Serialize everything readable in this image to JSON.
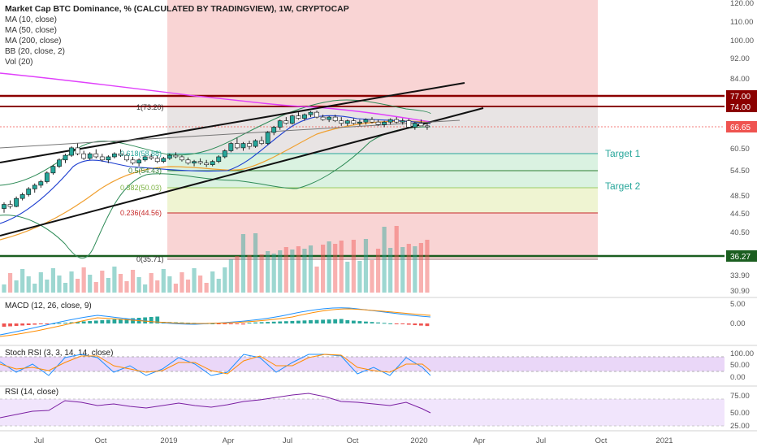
{
  "header": {
    "title": "Market Cap BTC Dominance, % (CALCULATED BY TRADINGVIEW), 1W, CRYPTOCAP",
    "indicators": [
      "MA (10, close)",
      "MA (50, close)",
      "MA (200, close)",
      "BB (20, close, 2)",
      "Vol (20)"
    ]
  },
  "chart_data": {
    "type": "candlestick",
    "title": "Market Cap BTC Dominance, % (CALCULATED BY TRADINGVIEW), 1W, CRYPTOCAP",
    "x_ticks": [
      "Jul",
      "Oct",
      "2019",
      "Apr",
      "Jul",
      "Oct",
      "2020",
      "Apr",
      "Jul",
      "Oct",
      "2021"
    ],
    "y_ticks": [
      "120.00",
      "110.00",
      "100.00",
      "92.00",
      "84.00",
      "77.00",
      "74.00",
      "66.65",
      "60.50",
      "54.50",
      "48.50",
      "44.50",
      "40.50",
      "36.27",
      "33.90",
      "30.90"
    ],
    "ylim": [
      30.9,
      120
    ],
    "y_scale": "log",
    "last_price": "66.65",
    "resistance_levels": [
      "77.00",
      "74.00"
    ],
    "support_level": "36.27",
    "fib_levels": [
      "1(73.20)",
      "0.618(58.88)",
      "0.5(54.43)",
      "0.382(50.03)",
      "0.236(44.56)",
      "0(35.71)"
    ],
    "targets": [
      "Target 1",
      "Target 2"
    ],
    "candles": [
      [
        41.5,
        43.0,
        40.5,
        42.5
      ],
      [
        42.5,
        43.5,
        41.5,
        42.0
      ],
      [
        42.0,
        44.5,
        41.8,
        44.0
      ],
      [
        44.0,
        45.5,
        43.5,
        45.0
      ],
      [
        45.0,
        47.0,
        44.5,
        46.5
      ],
      [
        46.5,
        48.0,
        45.5,
        47.5
      ],
      [
        47.5,
        49.0,
        46.8,
        48.5
      ],
      [
        48.5,
        51.5,
        48.0,
        51.0
      ],
      [
        51.0,
        53.5,
        50.5,
        53.0
      ],
      [
        53.0,
        55.5,
        52.5,
        55.0
      ],
      [
        55.0,
        57.0,
        54.0,
        56.5
      ],
      [
        56.5,
        59.5,
        56.0,
        59.0
      ],
      [
        59.0,
        60.5,
        56.5,
        57.0
      ],
      [
        57.0,
        58.0,
        55.0,
        55.5
      ],
      [
        55.5,
        57.5,
        55.0,
        57.0
      ],
      [
        57.0,
        58.5,
        55.5,
        56.0
      ],
      [
        56.0,
        57.0,
        54.5,
        55.0
      ],
      [
        55.0,
        56.5,
        54.0,
        56.0
      ],
      [
        56.0,
        57.5,
        55.5,
        57.0
      ],
      [
        57.0,
        58.5,
        56.0,
        56.5
      ],
      [
        56.5,
        57.0,
        54.5,
        55.0
      ],
      [
        55.0,
        56.0,
        53.5,
        54.0
      ],
      [
        54.0,
        55.5,
        53.0,
        55.0
      ],
      [
        55.0,
        56.5,
        54.5,
        56.0
      ],
      [
        56.0,
        57.0,
        55.0,
        55.5
      ],
      [
        55.5,
        56.5,
        54.0,
        54.5
      ],
      [
        54.5,
        56.0,
        54.0,
        55.5
      ],
      [
        55.5,
        57.0,
        55.0,
        56.5
      ],
      [
        56.5,
        57.5,
        55.5,
        56.0
      ],
      [
        56.0,
        56.5,
        54.5,
        55.0
      ],
      [
        55.0,
        55.8,
        53.5,
        54.0
      ],
      [
        54.0,
        55.0,
        53.0,
        54.5
      ],
      [
        54.5,
        55.5,
        53.5,
        54.0
      ],
      [
        54.0,
        55.0,
        52.8,
        53.5
      ],
      [
        53.5,
        55.0,
        53.0,
        54.5
      ],
      [
        54.5,
        56.5,
        54.0,
        56.0
      ],
      [
        56.0,
        58.5,
        55.5,
        58.0
      ],
      [
        58.0,
        61.0,
        57.5,
        60.5
      ],
      [
        60.5,
        62.5,
        58.5,
        59.0
      ],
      [
        59.0,
        61.0,
        58.0,
        60.5
      ],
      [
        60.5,
        61.5,
        58.5,
        59.5
      ],
      [
        59.5,
        62.0,
        59.0,
        61.5
      ],
      [
        61.5,
        63.0,
        60.0,
        60.5
      ],
      [
        60.5,
        65.0,
        60.0,
        64.5
      ],
      [
        64.5,
        67.0,
        63.5,
        66.5
      ],
      [
        66.5,
        69.5,
        65.5,
        69.0
      ],
      [
        69.0,
        70.5,
        67.5,
        68.0
      ],
      [
        68.0,
        71.5,
        67.5,
        71.0
      ],
      [
        71.0,
        72.5,
        69.5,
        70.0
      ],
      [
        70.0,
        72.0,
        69.0,
        71.5
      ],
      [
        71.5,
        73.0,
        70.5,
        72.5
      ],
      [
        72.5,
        73.2,
        70.0,
        70.5
      ],
      [
        70.5,
        71.5,
        69.0,
        69.5
      ],
      [
        69.5,
        71.0,
        68.5,
        70.5
      ],
      [
        70.5,
        71.5,
        68.5,
        69.0
      ],
      [
        69.0,
        70.5,
        67.0,
        68.0
      ],
      [
        68.0,
        69.5,
        67.0,
        69.0
      ],
      [
        69.0,
        70.0,
        67.5,
        68.0
      ],
      [
        68.0,
        69.5,
        67.0,
        68.5
      ],
      [
        68.5,
        70.0,
        67.5,
        69.5
      ],
      [
        69.5,
        70.5,
        68.0,
        68.5
      ],
      [
        68.5,
        69.5,
        67.0,
        67.5
      ],
      [
        67.5,
        69.0,
        66.5,
        68.5
      ],
      [
        68.5,
        70.0,
        67.5,
        69.5
      ],
      [
        69.5,
        70.5,
        68.0,
        68.5
      ],
      [
        68.5,
        70.0,
        67.5,
        69.0
      ],
      [
        69.0,
        69.8,
        66.0,
        66.5
      ],
      [
        66.5,
        68.5,
        65.5,
        68.0
      ],
      [
        68.0,
        69.5,
        67.0,
        67.0
      ],
      [
        67.0,
        68.0,
        65.5,
        66.65
      ]
    ]
  },
  "panes": {
    "macd": {
      "label": "MACD (12, 26, close, 9)",
      "ticks": [
        "5.00",
        "0.00"
      ]
    },
    "stoch": {
      "label": "Stoch RSI (3, 3, 14, 14, close)",
      "ticks": [
        "100.00",
        "50.00",
        "0.00"
      ]
    },
    "rsi": {
      "label": "RSI (14, close)",
      "ticks": [
        "75.00",
        "50.00",
        "25.00"
      ]
    }
  },
  "colors": {
    "up": "#26a69a",
    "down": "#ef5350",
    "resistance": "#8b0000",
    "support": "#1b5e20",
    "ma200": "#e040fb",
    "price_badge": "#ef5350"
  }
}
